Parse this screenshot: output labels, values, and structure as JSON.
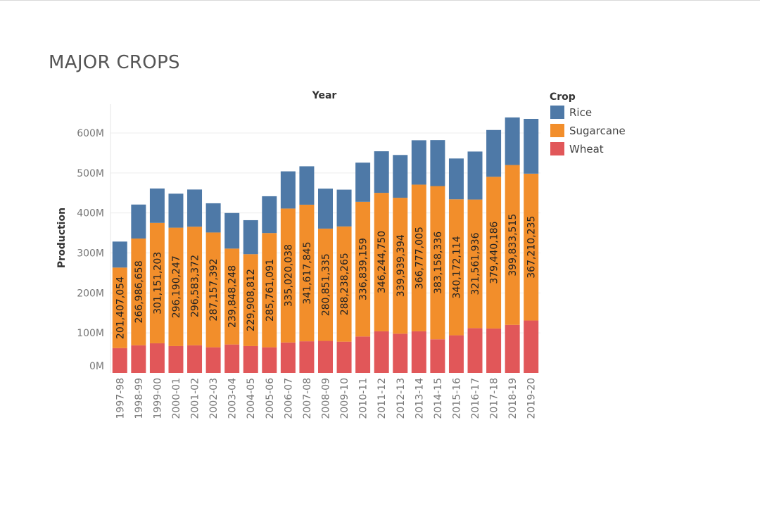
{
  "page_title": "MAJOR CROPS",
  "chart_data": {
    "type": "bar",
    "stacked": true,
    "title": "MAJOR CROPS",
    "column_header": "Year",
    "ylabel": "Production",
    "ylim": [
      0,
      650000000
    ],
    "yticks": [
      0,
      100000000,
      200000000,
      300000000,
      400000000,
      500000000,
      600000000
    ],
    "ytick_labels": [
      "0M",
      "100M",
      "200M",
      "300M",
      "400M",
      "500M",
      "600M"
    ],
    "grid": true,
    "legend": {
      "title": "Crop",
      "position": "top-right"
    },
    "categories": [
      "1997-98",
      "1998-99",
      "1999-00",
      "2000-01",
      "2001-02",
      "2002-03",
      "2003-04",
      "2004-05",
      "2005-06",
      "2006-07",
      "2007-08",
      "2008-09",
      "2009-10",
      "2010-11",
      "2011-12",
      "2012-13",
      "2013-14",
      "2014-15",
      "2015-16",
      "2016-17",
      "2017-18",
      "2018-19",
      "2019-20"
    ],
    "series": [
      {
        "name": "Wheat",
        "color": "#e15759",
        "values": [
          62000000,
          69000000,
          74000000,
          67000000,
          69000000,
          64000000,
          71000000,
          67000000,
          64000000,
          76000000,
          79000000,
          80000000,
          78000000,
          91000000,
          104000000,
          98000000,
          104000000,
          84000000,
          94000000,
          112000000,
          111000000,
          120000000,
          131000000
        ]
      },
      {
        "name": "Sugarcane",
        "color": "#f28e2b",
        "values": [
          201407054,
          266986658,
          301151203,
          296190247,
          296583372,
          287157392,
          239848248,
          229908812,
          285761091,
          335020038,
          341617845,
          280851335,
          288238265,
          336839159,
          346244750,
          339939394,
          366777005,
          383158336,
          340172114,
          321561936,
          379440186,
          399833515,
          367210235
        ],
        "labels": [
          "201,407,054",
          "266,986,658",
          "301,151,203",
          "296,190,247",
          "296,583,372",
          "287,157,392",
          "239,848,248",
          "229,908,812",
          "285,761,091",
          "335,020,038",
          "341,617,845",
          "280,851,335",
          "288,238,265",
          "336,839,159",
          "346,244,750",
          "339,939,394",
          "366,777,005",
          "383,158,336",
          "340,172,114",
          "321,561,936",
          "379,440,186",
          "399,833,515",
          "367,210,235"
        ]
      },
      {
        "name": "Rice",
        "color": "#4e79a7",
        "values": [
          65000000,
          85000000,
          86000000,
          85000000,
          93000000,
          73000000,
          89000000,
          85000000,
          92000000,
          93000000,
          96000000,
          100000000,
          92000000,
          98000000,
          104000000,
          107000000,
          111000000,
          115000000,
          102000000,
          120000000,
          117000000,
          119000000,
          137000000
        ]
      }
    ]
  }
}
